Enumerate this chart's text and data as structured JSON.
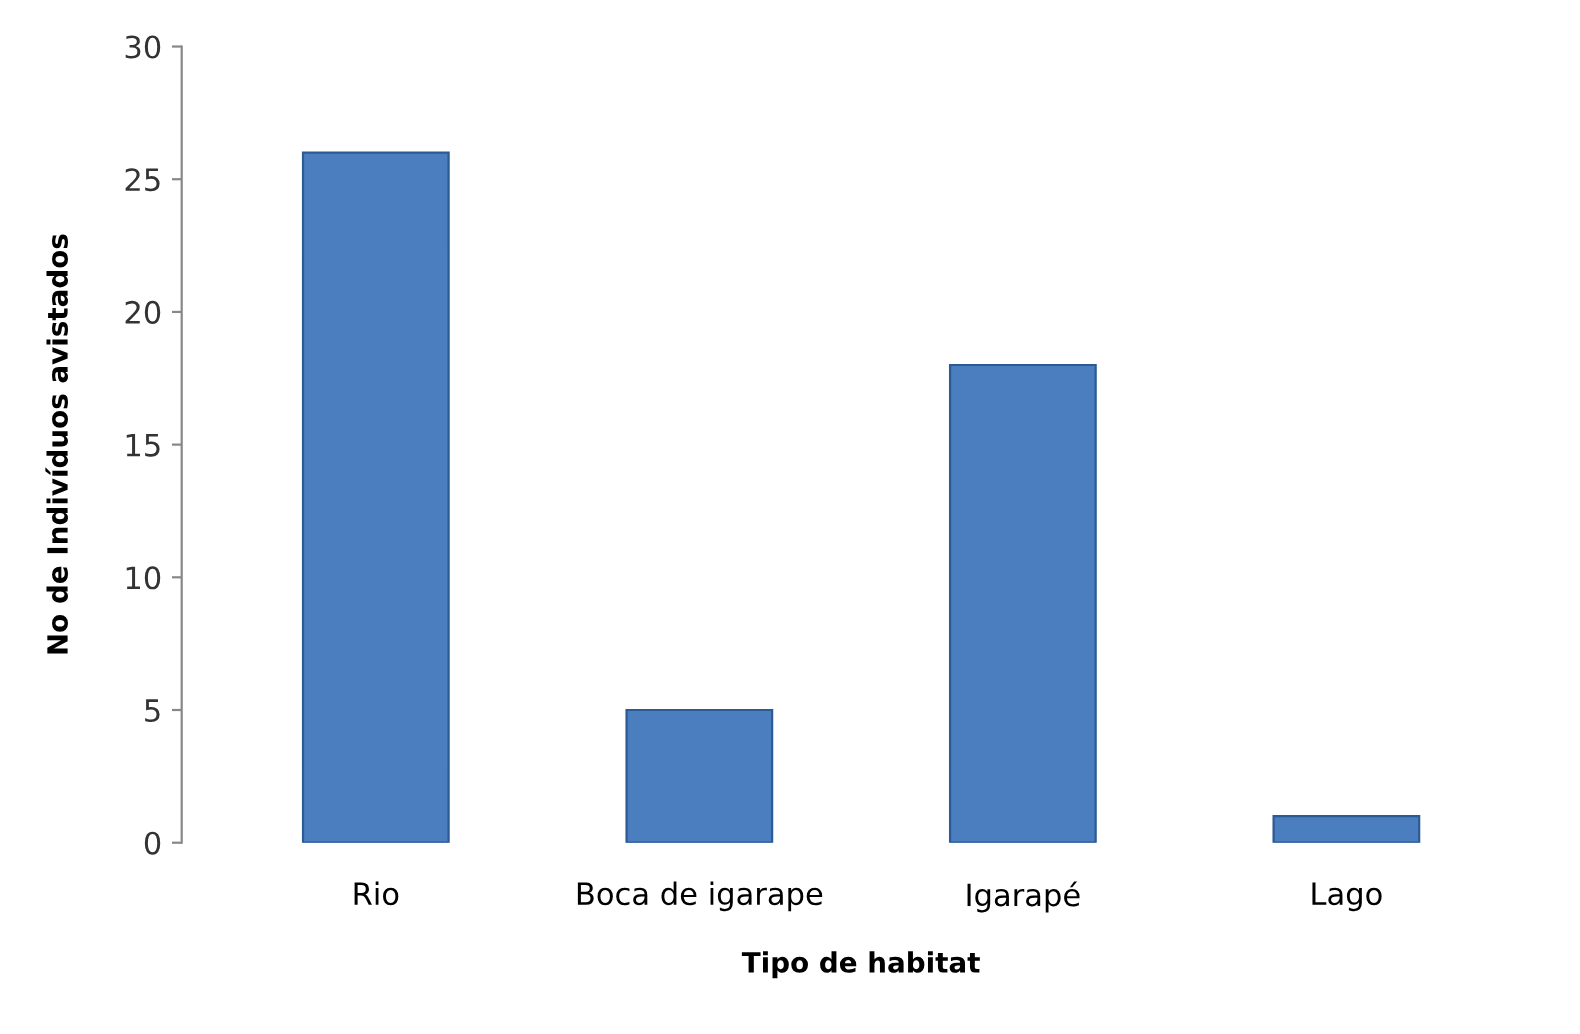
{
  "chart_data": {
    "type": "bar",
    "xlabel": "Tipo de habitat",
    "ylabel": "No de Indivíduos avistados",
    "categories": [
      "Rio",
      "Boca de igarape",
      "Igarapé",
      "Lago"
    ],
    "values": [
      26,
      5,
      18,
      1
    ],
    "color": "#4a7ebf",
    "ylim": [
      0,
      30
    ],
    "yticks": [
      0,
      5,
      10,
      15,
      20,
      25,
      30
    ],
    "grid": false,
    "legend": false
  }
}
